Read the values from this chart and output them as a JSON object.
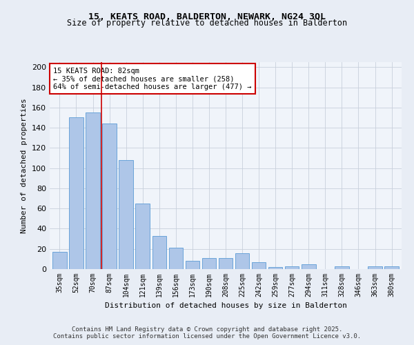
{
  "title1": "15, KEATS ROAD, BALDERTON, NEWARK, NG24 3QL",
  "title2": "Size of property relative to detached houses in Balderton",
  "xlabel": "Distribution of detached houses by size in Balderton",
  "ylabel": "Number of detached properties",
  "categories": [
    "35sqm",
    "52sqm",
    "70sqm",
    "87sqm",
    "104sqm",
    "121sqm",
    "139sqm",
    "156sqm",
    "173sqm",
    "190sqm",
    "208sqm",
    "225sqm",
    "242sqm",
    "259sqm",
    "277sqm",
    "294sqm",
    "311sqm",
    "328sqm",
    "346sqm",
    "363sqm",
    "380sqm"
  ],
  "values": [
    17,
    150,
    155,
    144,
    108,
    65,
    33,
    21,
    8,
    11,
    11,
    16,
    7,
    2,
    3,
    5,
    0,
    3,
    0,
    3,
    3
  ],
  "bar_color": "#aec6e8",
  "bar_edge_color": "#5b9bd5",
  "vline_x": 2.5,
  "vline_color": "#cc0000",
  "annotation_title": "15 KEATS ROAD: 82sqm",
  "annotation_line1": "← 35% of detached houses are smaller (258)",
  "annotation_line2": "64% of semi-detached houses are larger (477) →",
  "annotation_box_color": "#cc0000",
  "ylim": [
    0,
    205
  ],
  "yticks": [
    0,
    20,
    40,
    60,
    80,
    100,
    120,
    140,
    160,
    180,
    200
  ],
  "footer1": "Contains HM Land Registry data © Crown copyright and database right 2025.",
  "footer2": "Contains public sector information licensed under the Open Government Licence v3.0.",
  "bg_color": "#e8edf5",
  "plot_bg_color": "#f0f4fa"
}
